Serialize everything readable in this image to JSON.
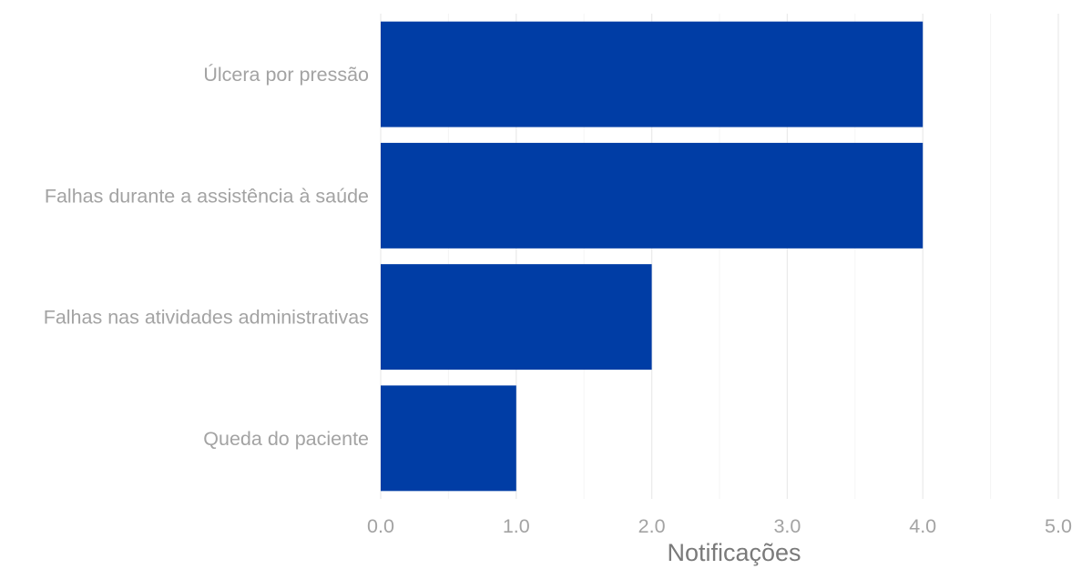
{
  "chart_data": {
    "type": "bar",
    "orientation": "horizontal",
    "categories": [
      "Úlcera por pressão",
      "Falhas durante a assistência à saúde",
      "Falhas nas atividades administrativas",
      "Queda do paciente"
    ],
    "values": [
      4,
      4,
      2,
      1
    ],
    "xlabel": "Notificações",
    "ylabel": "",
    "xlim": [
      0,
      5
    ],
    "x_ticks": [
      "0.0",
      "1.0",
      "2.0",
      "3.0",
      "4.0",
      "5.0"
    ],
    "grid": true,
    "bar_color": "#003DA5",
    "legend": false
  }
}
